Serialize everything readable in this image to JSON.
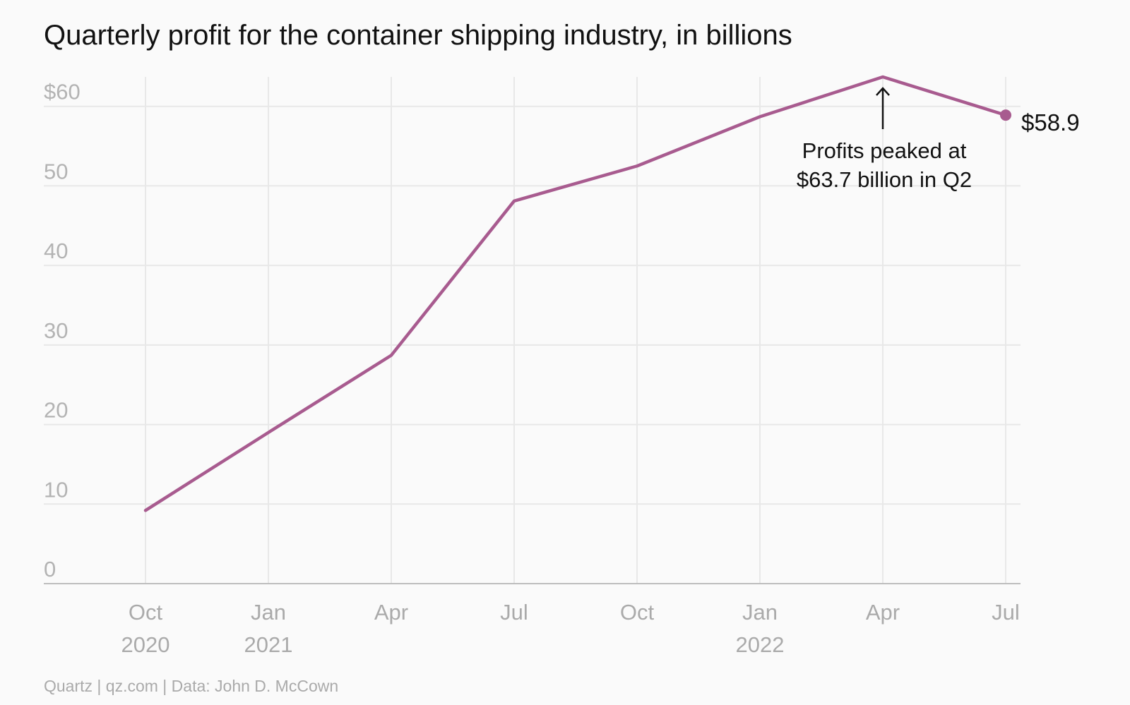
{
  "chart_data": {
    "type": "line",
    "title": "Quarterly profit for the container shipping industry, in billions",
    "source": "Quartz | qz.com | Data: John D. McCown",
    "x": [
      "2020-10",
      "2021-01",
      "2021-04",
      "2021-07",
      "2021-10",
      "2022-01",
      "2022-04",
      "2022-07"
    ],
    "x_tick_labels": [
      {
        "month": "Oct",
        "year": "2020"
      },
      {
        "month": "Jan",
        "year": "2021"
      },
      {
        "month": "Apr",
        "year": ""
      },
      {
        "month": "Jul",
        "year": ""
      },
      {
        "month": "Oct",
        "year": ""
      },
      {
        "month": "Jan",
        "year": "2022"
      },
      {
        "month": "Apr",
        "year": ""
      },
      {
        "month": "Jul",
        "year": ""
      }
    ],
    "series": [
      {
        "values": [
          9.2,
          19.0,
          28.7,
          48.1,
          52.5,
          58.7,
          63.7,
          58.9
        ],
        "color": "#a85b8f"
      }
    ],
    "y_ticks": [
      0,
      10,
      20,
      30,
      40,
      50,
      60
    ],
    "y_tick_labels": [
      "0",
      "10",
      "20",
      "30",
      "40",
      "50",
      "$60"
    ],
    "ylim": [
      0,
      63.7
    ],
    "grid": true,
    "legend": "none",
    "annotations": {
      "peak_note_line1": "Profits peaked at",
      "peak_note_line2": "$63.7 billion in Q2",
      "end_label": "$58.9"
    }
  }
}
